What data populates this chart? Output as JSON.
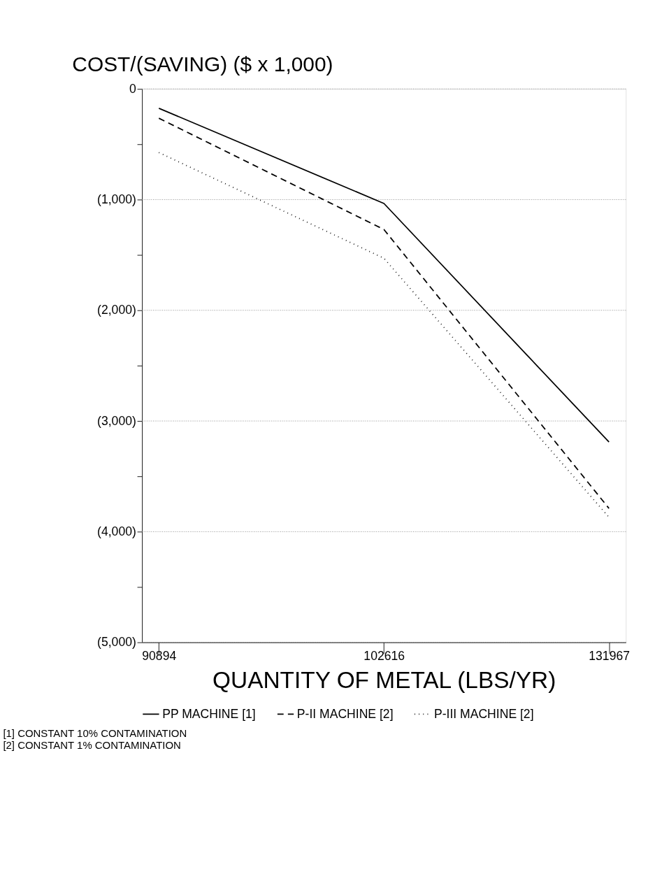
{
  "chart_data": {
    "type": "line",
    "ylabel": "COST/(SAVING) ($ x 1,000)",
    "xlabel": "QUANTITY OF METAL (LBS/YR)",
    "categories": [
      "90894",
      "102616",
      "131967"
    ],
    "series": [
      {
        "name": "PP MACHINE [1]",
        "color": "#000000",
        "line_style": "solid",
        "values": [
          -175,
          -1035,
          -3190
        ]
      },
      {
        "name": "P-II MACHINE [2]",
        "color": "#000000",
        "line_style": "dashed",
        "values": [
          -265,
          -1270,
          -3790
        ]
      },
      {
        "name": "P-III MACHINE [2]",
        "color": "#000000",
        "line_style": "dotted",
        "values": [
          -575,
          -1530,
          -3870
        ]
      }
    ],
    "ylim": [
      -5000,
      0
    ],
    "yticks": [
      {
        "value": -5000,
        "label": "(5,000)"
      },
      {
        "value": -4500,
        "label": null
      },
      {
        "value": -4000,
        "label": "(4,000)"
      },
      {
        "value": -3500,
        "label": null
      },
      {
        "value": -3000,
        "label": "(3,000)"
      },
      {
        "value": -2500,
        "label": null
      },
      {
        "value": -2000,
        "label": "(2,000)"
      },
      {
        "value": -1500,
        "label": null
      },
      {
        "value": -1000,
        "label": "(1,000)"
      },
      {
        "value": -500,
        "label": null
      },
      0
    ],
    "grid": "y",
    "legend": "bottom",
    "marker": "none",
    "annotations": [
      "[1] CONSTANT 10% CONTAMINATION",
      "[2] CONSTANT 1% CONTAMINATION"
    ]
  }
}
